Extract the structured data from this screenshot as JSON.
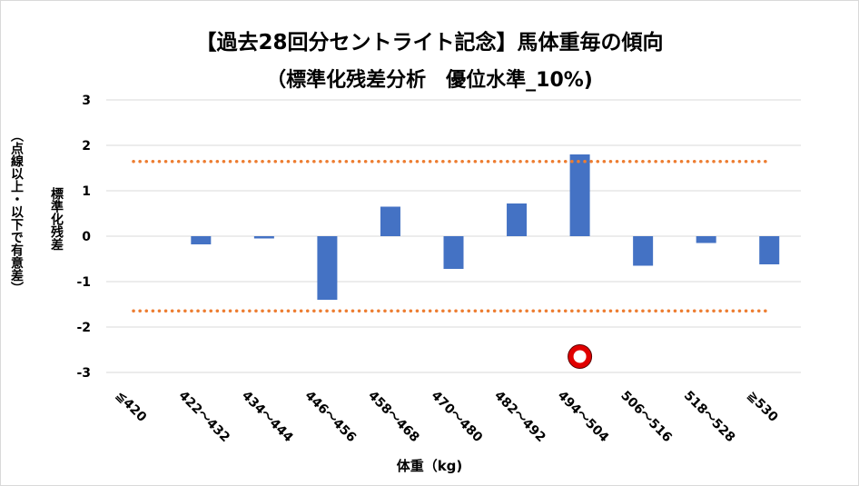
{
  "chart_data": {
    "type": "bar",
    "title": "【過去28回分セントライト記念】馬体重毎の傾向",
    "subtitle": "（標準化残差分析　優位水準_10%)",
    "xlabel": "体重（kg)",
    "ylabel": "標準化残差",
    "ylabel_note": "（点線以上・以下で有意差）",
    "categories": [
      "≦420",
      "422～432",
      "434～444",
      "446～456",
      "458～468",
      "470～480",
      "482～492",
      "494～504",
      "506～516",
      "518～528",
      "≧530"
    ],
    "values": [
      0,
      -0.18,
      -0.05,
      -1.4,
      0.65,
      -0.72,
      0.72,
      1.8,
      -0.65,
      -0.15,
      -0.62
    ],
    "ylim": [
      -3,
      3
    ],
    "yticks": [
      "3",
      "2",
      "1",
      "0",
      "-1",
      "-2",
      "-3"
    ],
    "significance_lines": [
      1.645,
      -1.645
    ],
    "highlight_category": "494～504",
    "grid": true,
    "colors": {
      "bar": "#4472c4",
      "dotted_line": "#ed7d31",
      "marker_outer": "#e00000",
      "gridline": "#d9d9d9"
    }
  }
}
